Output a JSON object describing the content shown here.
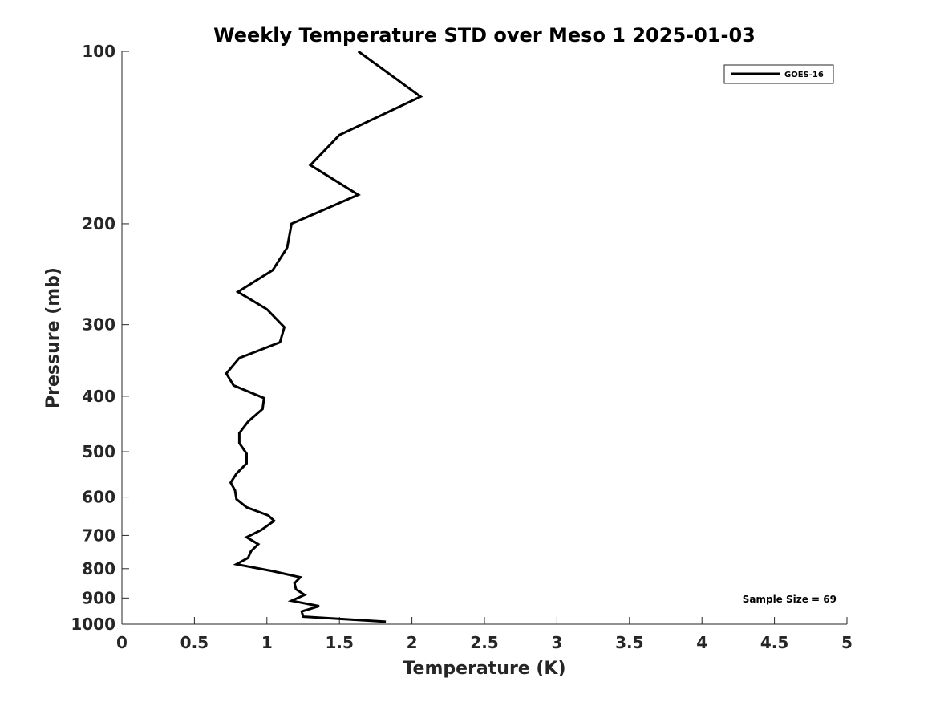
{
  "chart_data": {
    "type": "line",
    "title": "Weekly Temperature STD over Meso 1 2025-01-03",
    "xlabel": "Temperature (K)",
    "ylabel": "Pressure (mb)",
    "xlim": [
      0,
      5
    ],
    "ylim": [
      100,
      1000
    ],
    "yscale": "log",
    "y_reversed": true,
    "xticks": [
      0,
      0.5,
      1,
      1.5,
      2,
      2.5,
      3,
      3.5,
      4,
      4.5,
      5
    ],
    "xtick_labels": [
      "0",
      "0.5",
      "1",
      "1.5",
      "2",
      "2.5",
      "3",
      "3.5",
      "4",
      "4.5",
      "5"
    ],
    "yticks": [
      100,
      200,
      300,
      400,
      500,
      600,
      700,
      800,
      900,
      1000
    ],
    "ytick_labels": [
      "100",
      "200",
      "300",
      "400",
      "500",
      "600",
      "700",
      "800",
      "900",
      "1000"
    ],
    "grid": false,
    "legend_position": "top-right",
    "line_color": "#000000",
    "series": [
      {
        "name": "GOES-16",
        "points": [
          [
            1.63,
            100
          ],
          [
            2.06,
            120
          ],
          [
            1.5,
            140
          ],
          [
            1.3,
            158
          ],
          [
            1.63,
            178
          ],
          [
            1.17,
            200
          ],
          [
            1.14,
            220
          ],
          [
            1.04,
            241
          ],
          [
            0.8,
            263
          ],
          [
            1.0,
            282
          ],
          [
            1.12,
            303
          ],
          [
            1.09,
            322
          ],
          [
            0.81,
            343
          ],
          [
            0.72,
            365
          ],
          [
            0.77,
            383
          ],
          [
            0.98,
            403
          ],
          [
            0.97,
            421
          ],
          [
            0.87,
            443
          ],
          [
            0.81,
            464
          ],
          [
            0.81,
            483
          ],
          [
            0.86,
            504
          ],
          [
            0.86,
            524
          ],
          [
            0.79,
            546
          ],
          [
            0.75,
            566
          ],
          [
            0.78,
            584
          ],
          [
            0.79,
            605
          ],
          [
            0.86,
            625
          ],
          [
            1.01,
            646
          ],
          [
            1.05,
            660
          ],
          [
            0.96,
            685
          ],
          [
            0.86,
            705
          ],
          [
            0.94,
            725
          ],
          [
            0.89,
            746
          ],
          [
            0.87,
            766
          ],
          [
            0.79,
            786
          ],
          [
            1.04,
            808
          ],
          [
            1.23,
            828
          ],
          [
            1.19,
            848
          ],
          [
            1.2,
            869
          ],
          [
            1.26,
            889
          ],
          [
            1.17,
            910
          ],
          [
            1.36,
            930
          ],
          [
            1.24,
            950
          ],
          [
            1.25,
            970
          ],
          [
            1.82,
            990
          ]
        ]
      }
    ],
    "annotations": [
      "Sample Size = 69"
    ]
  }
}
